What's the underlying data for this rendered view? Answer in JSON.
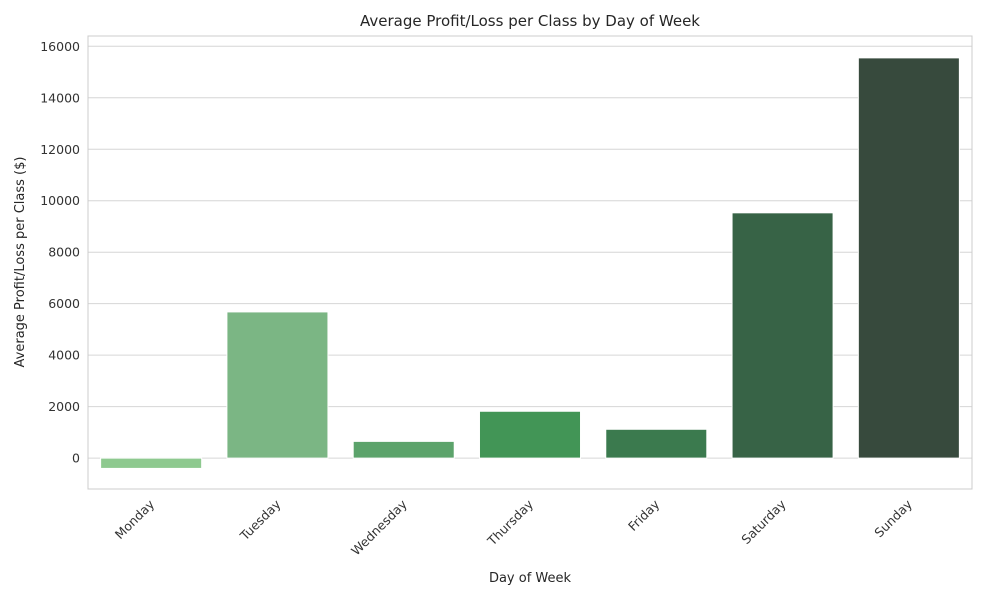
{
  "chart_data": {
    "type": "bar",
    "title": "Average Profit/Loss per Class by Day of Week",
    "xlabel": "Day of Week",
    "ylabel": "Average Profit/Loss per Class ($)",
    "categories": [
      "Monday",
      "Tuesday",
      "Wednesday",
      "Thursday",
      "Friday",
      "Saturday",
      "Sunday"
    ],
    "values": [
      -400,
      5680,
      650,
      1820,
      1120,
      9530,
      15550
    ],
    "colors": [
      "#8ec98f",
      "#7bb684",
      "#5ca36b",
      "#429556",
      "#3b7a4e",
      "#376346",
      "#374a3d"
    ],
    "ylim": [
      -1200,
      16400
    ],
    "yticks": [
      0,
      2000,
      4000,
      6000,
      8000,
      10000,
      12000,
      14000,
      16000
    ],
    "grid": true,
    "legend": "none"
  }
}
